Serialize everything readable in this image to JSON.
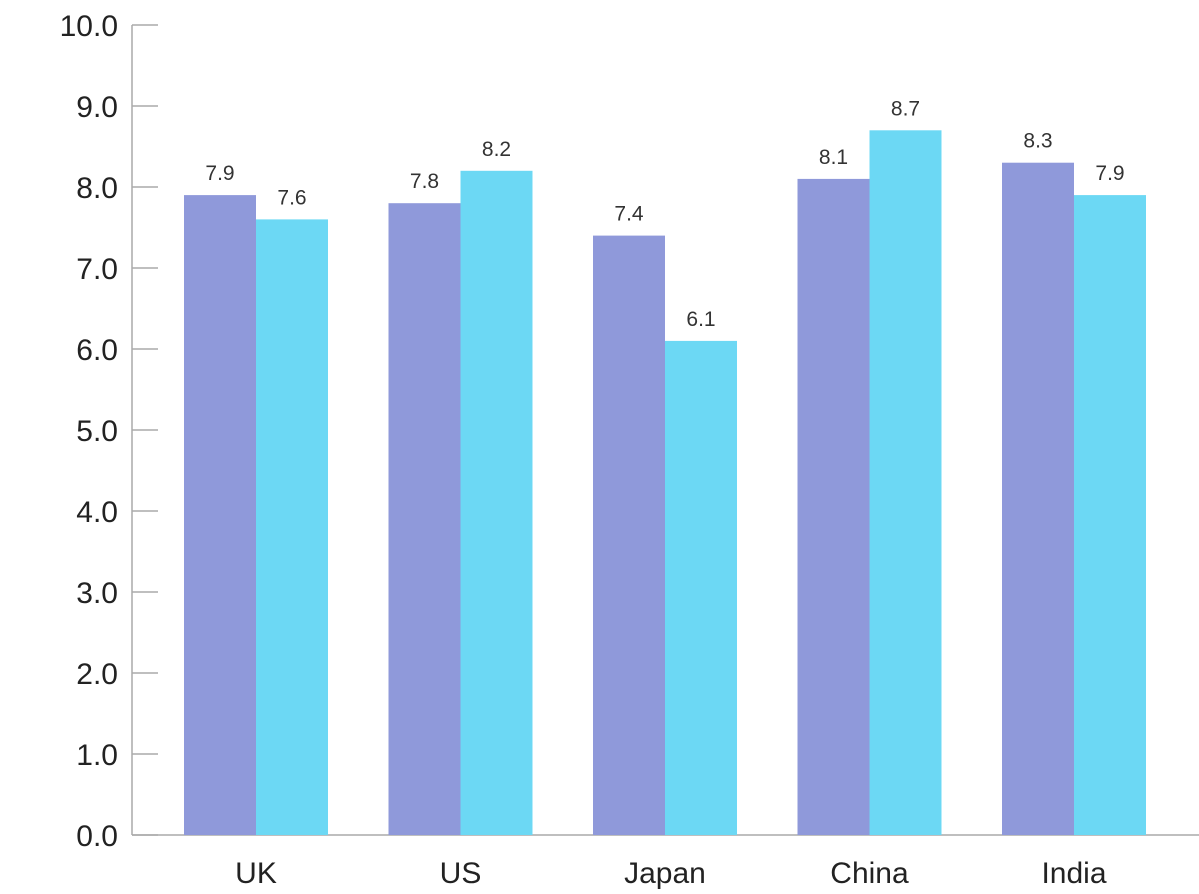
{
  "chart_data": {
    "type": "bar",
    "categories": [
      "UK",
      "US",
      "Japan",
      "China",
      "India"
    ],
    "series": [
      {
        "values": [
          7.9,
          7.8,
          7.4,
          8.1,
          8.3
        ],
        "color": "#8f99da"
      },
      {
        "values": [
          7.6,
          8.2,
          6.1,
          8.7,
          7.9
        ],
        "color": "#6cd8f4"
      }
    ],
    "ylim": [
      0,
      10
    ],
    "yticks": [
      "0.0",
      "1.0",
      "2.0",
      "3.0",
      "4.0",
      "5.0",
      "6.0",
      "7.0",
      "8.0",
      "9.0",
      "10.0"
    ],
    "data_labels": [
      [
        "7.9",
        "7.8",
        "7.4",
        "8.1",
        "8.3"
      ],
      [
        "7.6",
        "8.2",
        "6.1",
        "8.7",
        "7.9"
      ]
    ],
    "grid": false,
    "legend": "none"
  }
}
